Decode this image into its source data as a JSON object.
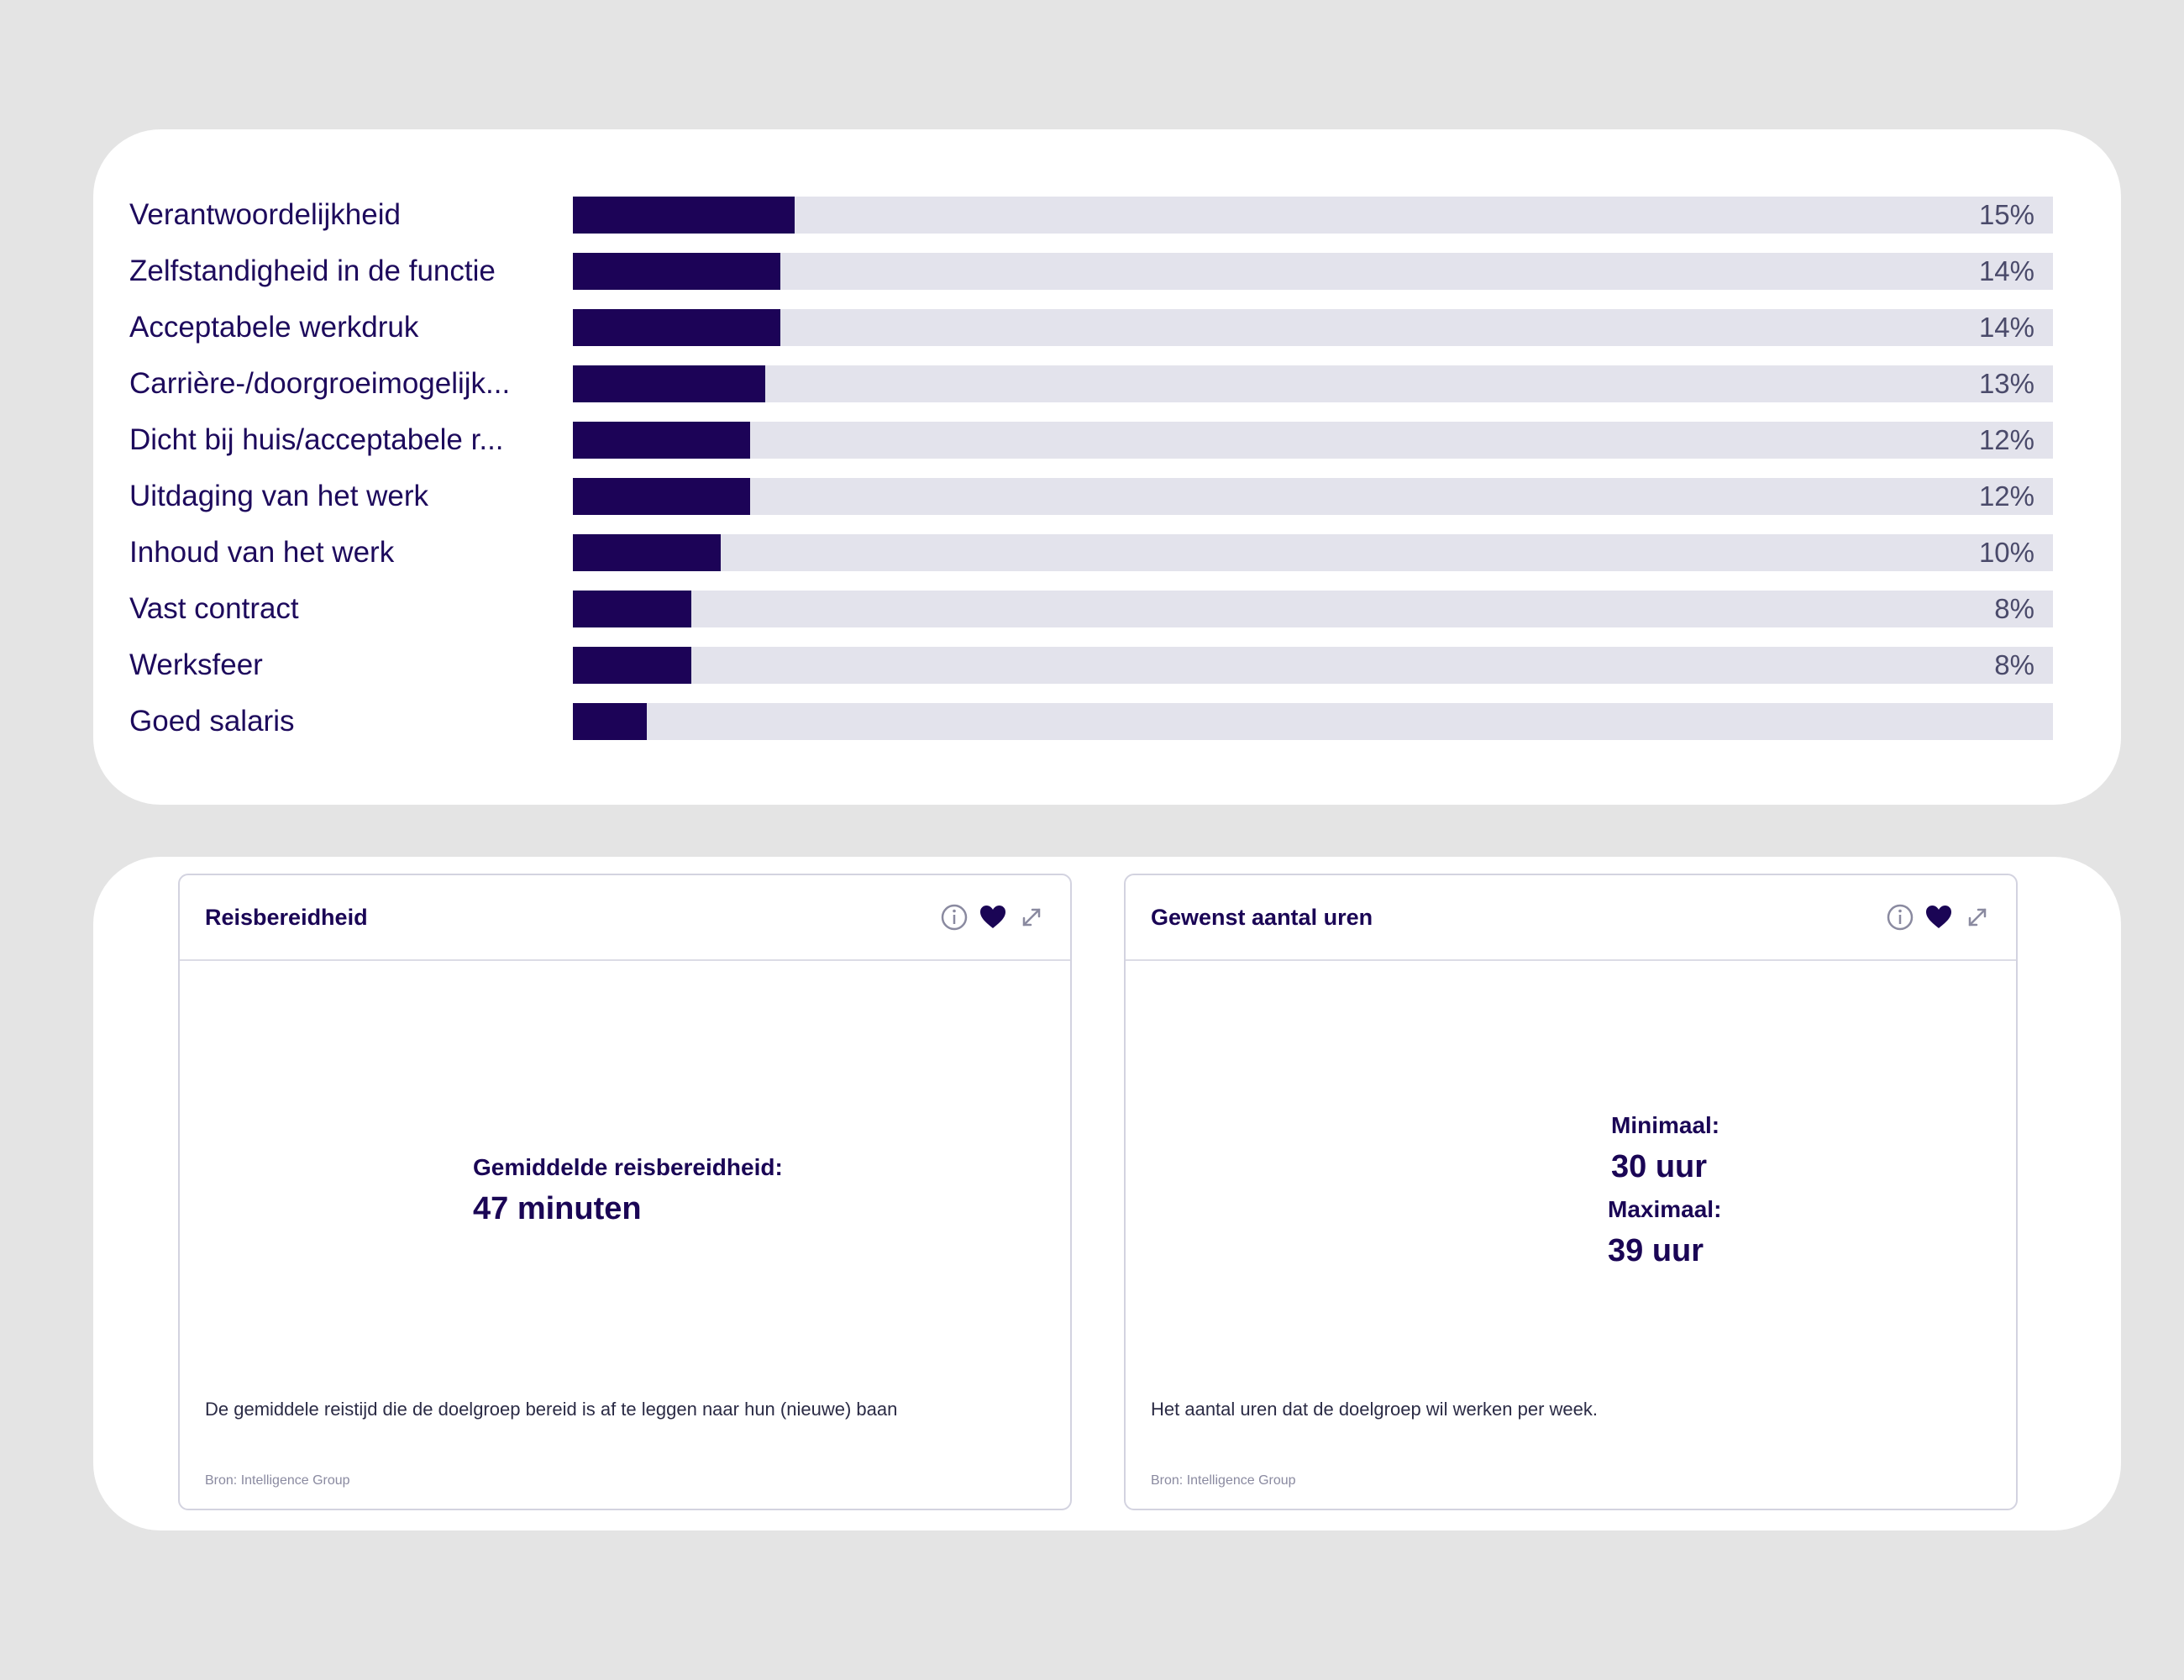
{
  "chart_data": {
    "type": "bar",
    "orientation": "horizontal",
    "categories": [
      "Verantwoordelijkheid",
      "Zelfstandigheid in de functie",
      "Acceptabele werkdruk",
      "Carrière-/doorgroeimogelijk...",
      "Dicht bij huis/acceptabele r...",
      "Uitdaging van het werk",
      "Inhoud van het werk",
      "Vast contract",
      "Werksfeer",
      "Goed salaris"
    ],
    "values": [
      15,
      14,
      14,
      13,
      12,
      12,
      10,
      8,
      8,
      5
    ],
    "value_labels": [
      "15%",
      "14%",
      "14%",
      "13%",
      "12%",
      "12%",
      "10%",
      "8%",
      "8%",
      ""
    ],
    "xlim": [
      0,
      100
    ],
    "bar_color": "#1c0357",
    "track_color": "#e3e3ec",
    "grid": false
  },
  "travel_card": {
    "title": "Reisbereidheid",
    "kpi_label": "Gemiddelde reisbereidheid:",
    "kpi_value": "47 minuten",
    "description": "De gemiddele reistijd die de doelgroep bereid is af te leggen naar hun (nieuwe) baan",
    "source": "Bron: Intelligence Group",
    "favorited": true
  },
  "hours_card": {
    "title": "Gewenst aantal uren",
    "min_label": "Minimaal:",
    "min_value": "30 uur",
    "max_label": "Maximaal:",
    "max_value": "39 uur",
    "description": "Het aantal uren dat de doelgroep wil werken per week.",
    "source": "Bron: Intelligence Group",
    "favorited": true
  },
  "icons": {
    "info": "info-icon",
    "favorite": "heart-icon",
    "expand": "expand-icon"
  },
  "colors": {
    "accent": "#1a0555",
    "background": "#e4e4e4"
  }
}
